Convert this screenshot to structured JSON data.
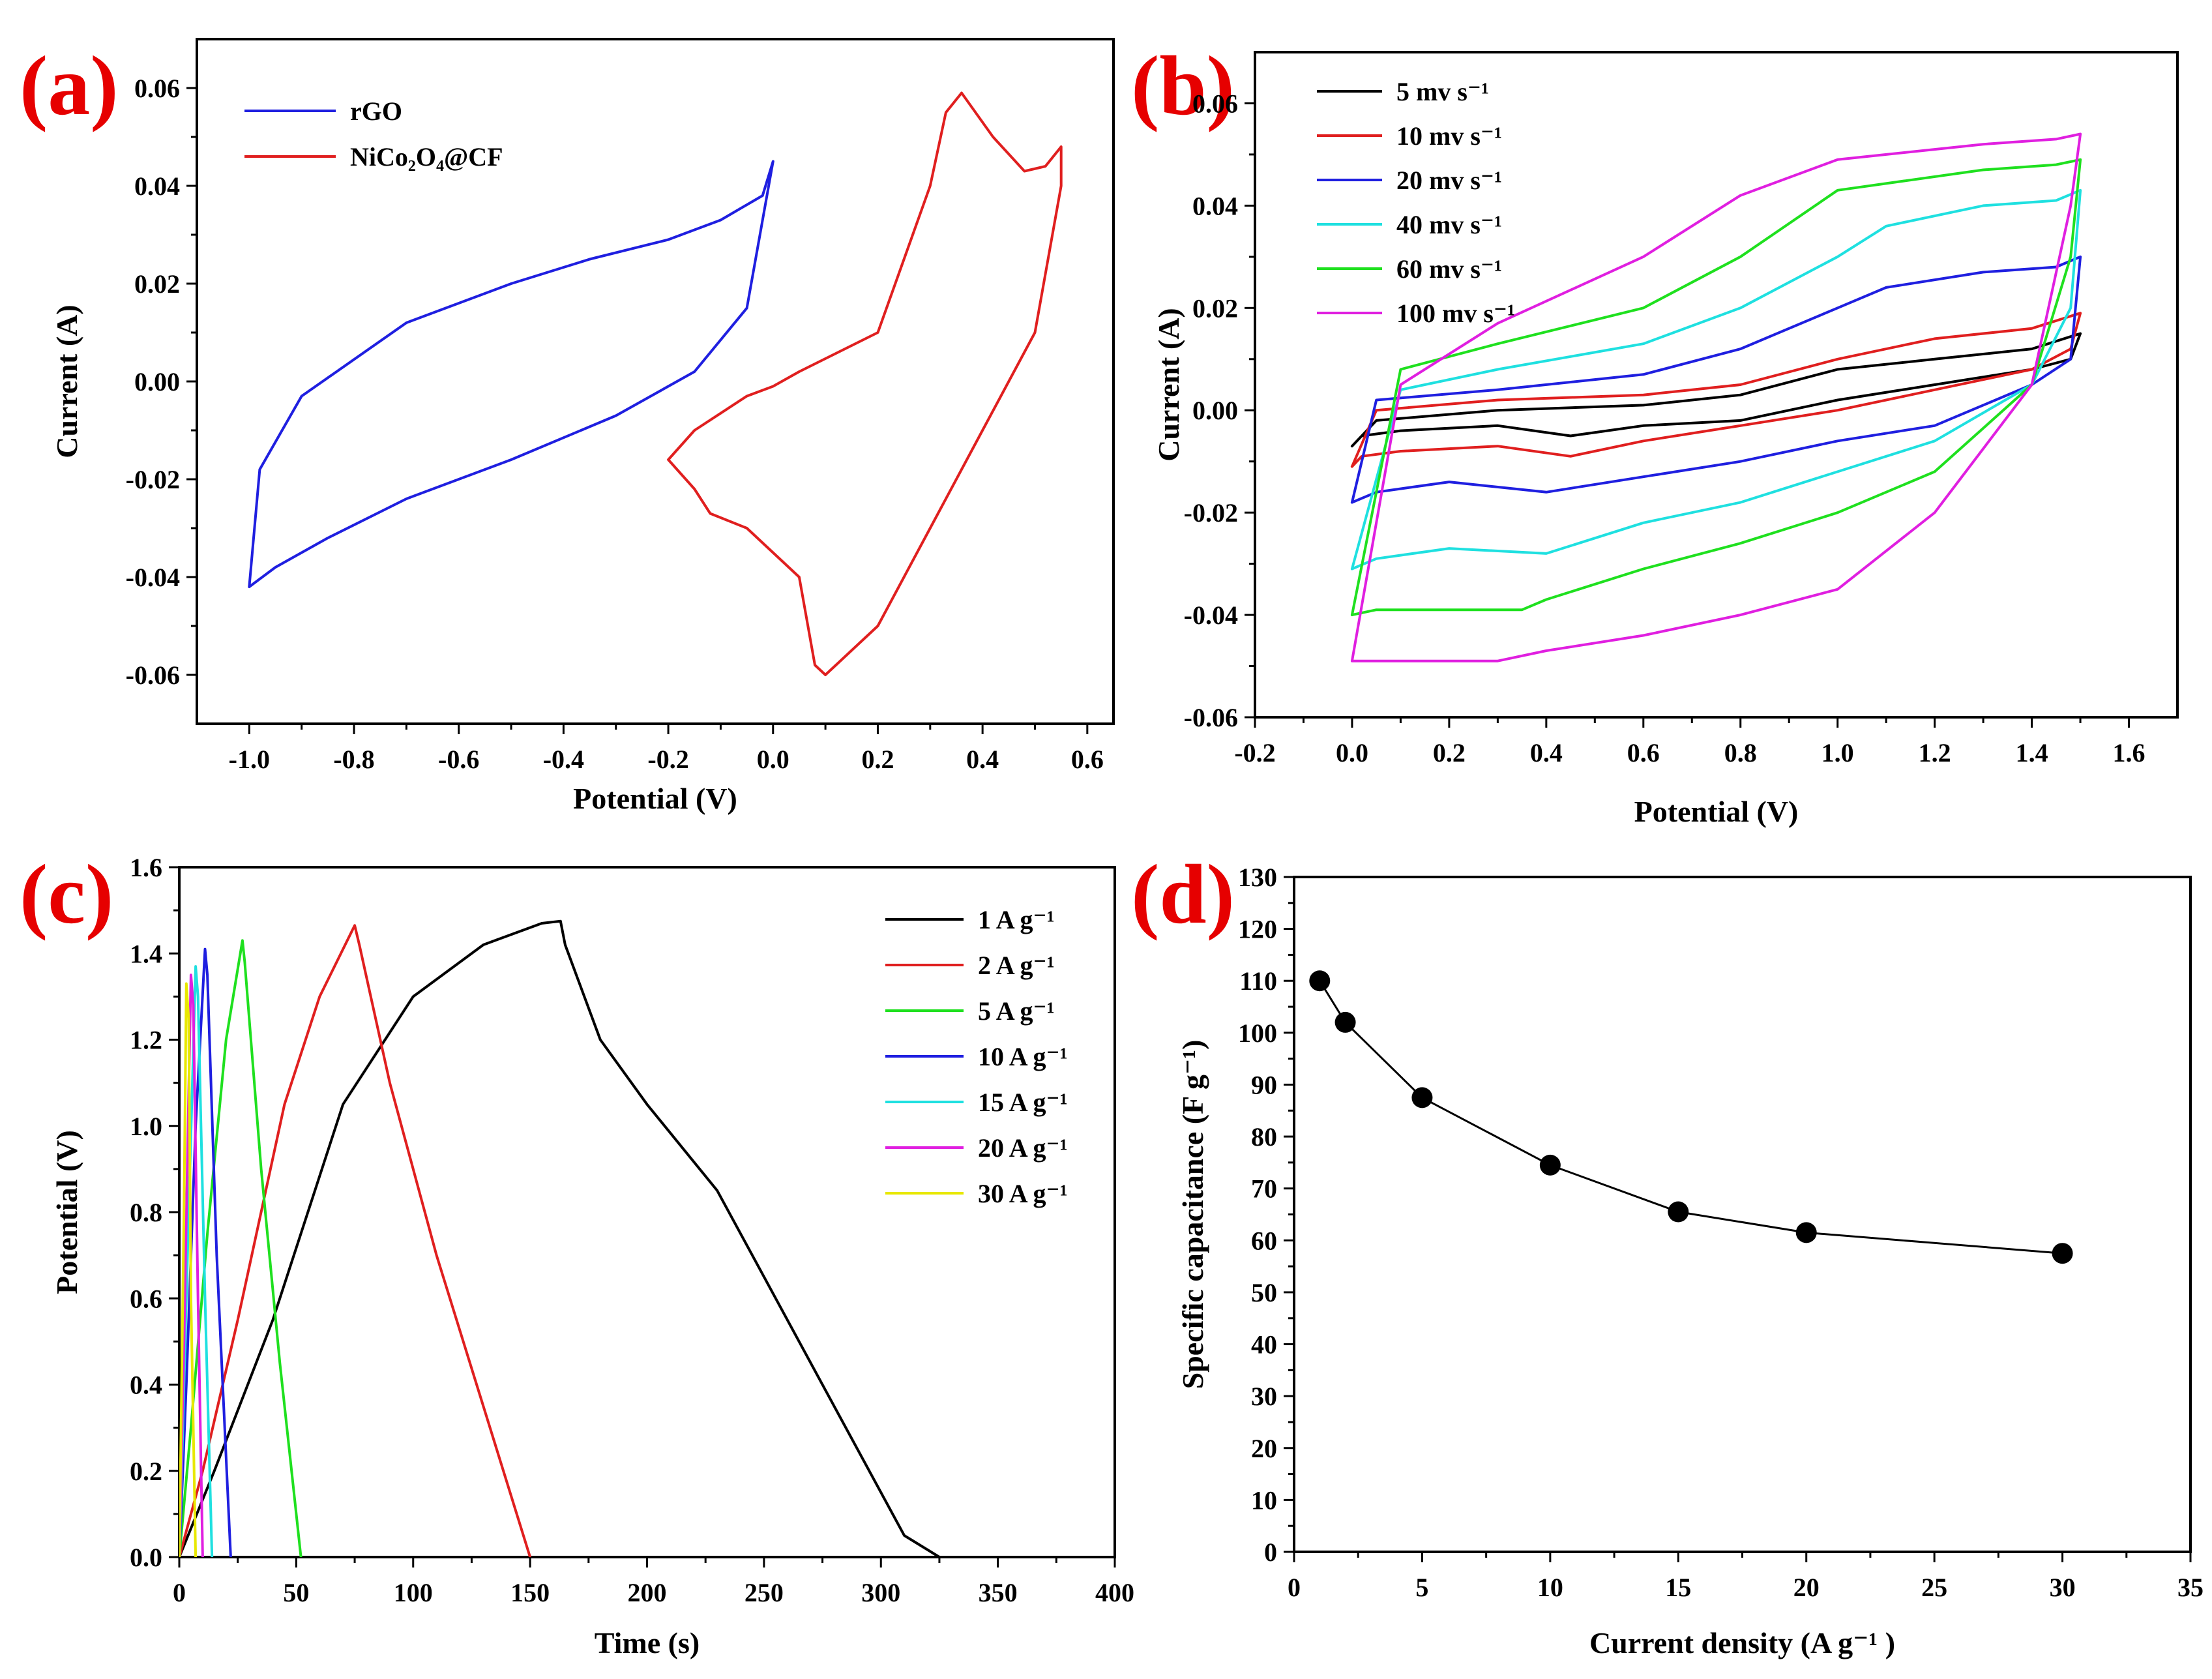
{
  "figure": {
    "panels": [
      {
        "id": "a",
        "label": "(a)"
      },
      {
        "id": "b",
        "label": "(b)"
      },
      {
        "id": "c",
        "label": "(c)"
      },
      {
        "id": "d",
        "label": "(d)"
      }
    ]
  },
  "chart_data": [
    {
      "id": "a",
      "type": "line",
      "panel_label": "(a)",
      "xlabel": "Potential (V)",
      "ylabel": "Current (A)",
      "xlim": [
        -1.1,
        0.65
      ],
      "ylim": [
        -0.07,
        0.07
      ],
      "xticks": [
        -1.0,
        -0.8,
        -0.6,
        -0.4,
        -0.2,
        0.0,
        0.2,
        0.4,
        0.6
      ],
      "xtick_labels": [
        "-1.0",
        "-0.8",
        "-0.6",
        "-0.4",
        "-0.2",
        "0.0",
        "0.2",
        "0.4",
        "0.6"
      ],
      "yticks": [
        -0.06,
        -0.04,
        -0.02,
        0.0,
        0.02,
        0.04,
        0.06
      ],
      "ytick_labels": [
        "-0.06",
        "-0.04",
        "-0.02",
        "0.00",
        "0.02",
        "0.04",
        "0.06"
      ],
      "legend_position": "top-left",
      "series": [
        {
          "name": "rGO",
          "color": "#1f1fe0",
          "x": [
            -1.0,
            -0.95,
            -0.85,
            -0.7,
            -0.5,
            -0.3,
            -0.15,
            -0.05,
            0.0,
            -0.02,
            -0.1,
            -0.2,
            -0.35,
            -0.5,
            -0.7,
            -0.9,
            -0.98,
            -1.0
          ],
          "y": [
            -0.042,
            -0.038,
            -0.032,
            -0.024,
            -0.016,
            -0.007,
            0.002,
            0.015,
            0.045,
            0.038,
            0.033,
            0.029,
            0.025,
            0.02,
            0.012,
            -0.003,
            -0.018,
            -0.042
          ]
        },
        {
          "name": "NiCo₂O₄@CF",
          "color": "#e01f1f",
          "x": [
            -0.2,
            -0.15,
            -0.05,
            0.0,
            0.05,
            0.2,
            0.3,
            0.33,
            0.36,
            0.42,
            0.48,
            0.52,
            0.55,
            0.55,
            0.5,
            0.4,
            0.3,
            0.2,
            0.12,
            0.1,
            0.08,
            0.05,
            -0.05,
            -0.12,
            -0.15,
            -0.2
          ],
          "y": [
            -0.016,
            -0.01,
            -0.003,
            -0.001,
            0.002,
            0.01,
            0.04,
            0.055,
            0.059,
            0.05,
            0.043,
            0.044,
            0.048,
            0.04,
            0.01,
            -0.01,
            -0.03,
            -0.05,
            -0.058,
            -0.06,
            -0.058,
            -0.04,
            -0.03,
            -0.027,
            -0.022,
            -0.016
          ]
        }
      ]
    },
    {
      "id": "b",
      "type": "line",
      "panel_label": "(b)",
      "xlabel": "Potential (V)",
      "ylabel": "Current (A)",
      "xlim": [
        -0.2,
        1.7
      ],
      "ylim": [
        -0.06,
        0.07
      ],
      "xticks": [
        -0.2,
        0.0,
        0.2,
        0.4,
        0.6,
        0.8,
        1.0,
        1.2,
        1.4,
        1.6
      ],
      "xtick_labels": [
        "-0.2",
        "0.0",
        "0.2",
        "0.4",
        "0.6",
        "0.8",
        "1.0",
        "1.2",
        "1.4",
        "1.6"
      ],
      "yticks": [
        -0.06,
        -0.04,
        -0.02,
        0.0,
        0.02,
        0.04,
        0.06
      ],
      "ytick_labels": [
        "-0.06",
        "-0.04",
        "-0.02",
        "0.00",
        "0.02",
        "0.04",
        "0.06"
      ],
      "legend_position": "top-left",
      "series": [
        {
          "name": "5 mv s⁻¹",
          "color": "#000000",
          "x": [
            0.0,
            0.05,
            0.3,
            0.6,
            0.8,
            1.0,
            1.2,
            1.4,
            1.5,
            1.48,
            1.4,
            1.2,
            1.0,
            0.8,
            0.6,
            0.45,
            0.3,
            0.1,
            0.02,
            0.0
          ],
          "y": [
            -0.007,
            -0.002,
            0.0,
            0.001,
            0.003,
            0.008,
            0.01,
            0.012,
            0.015,
            0.01,
            0.008,
            0.005,
            0.002,
            -0.002,
            -0.003,
            -0.005,
            -0.003,
            -0.004,
            -0.005,
            -0.007
          ]
        },
        {
          "name": "10 mv s⁻¹",
          "color": "#e01f1f",
          "x": [
            0.0,
            0.05,
            0.3,
            0.6,
            0.8,
            1.0,
            1.2,
            1.4,
            1.5,
            1.48,
            1.4,
            1.2,
            1.0,
            0.8,
            0.6,
            0.45,
            0.3,
            0.1,
            0.02,
            0.0
          ],
          "y": [
            -0.011,
            0.0,
            0.002,
            0.003,
            0.005,
            0.01,
            0.014,
            0.016,
            0.019,
            0.012,
            0.008,
            0.004,
            0.0,
            -0.003,
            -0.006,
            -0.009,
            -0.007,
            -0.008,
            -0.009,
            -0.011
          ]
        },
        {
          "name": "20 mv s⁻¹",
          "color": "#1f1fe0",
          "x": [
            0.0,
            0.05,
            0.3,
            0.6,
            0.8,
            1.0,
            1.1,
            1.3,
            1.45,
            1.5,
            1.48,
            1.4,
            1.2,
            1.0,
            0.8,
            0.6,
            0.4,
            0.2,
            0.05,
            0.0
          ],
          "y": [
            -0.018,
            0.002,
            0.004,
            0.007,
            0.012,
            0.02,
            0.024,
            0.027,
            0.028,
            0.03,
            0.01,
            0.005,
            -0.003,
            -0.006,
            -0.01,
            -0.013,
            -0.016,
            -0.014,
            -0.016,
            -0.018
          ]
        },
        {
          "name": "40 mv s⁻¹",
          "color": "#1fe0e0",
          "x": [
            0.0,
            0.1,
            0.3,
            0.6,
            0.8,
            1.0,
            1.1,
            1.3,
            1.45,
            1.5,
            1.48,
            1.4,
            1.2,
            1.0,
            0.8,
            0.6,
            0.4,
            0.2,
            0.05,
            0.0
          ],
          "y": [
            -0.031,
            0.004,
            0.008,
            0.013,
            0.02,
            0.03,
            0.036,
            0.04,
            0.041,
            0.043,
            0.02,
            0.005,
            -0.006,
            -0.012,
            -0.018,
            -0.022,
            -0.028,
            -0.027,
            -0.029,
            -0.031
          ]
        },
        {
          "name": "60 mv s⁻¹",
          "color": "#1fe01f",
          "x": [
            0.0,
            0.1,
            0.3,
            0.6,
            0.8,
            1.0,
            1.3,
            1.45,
            1.5,
            1.48,
            1.4,
            1.2,
            1.0,
            0.8,
            0.6,
            0.4,
            0.35,
            0.2,
            0.05,
            0.0
          ],
          "y": [
            -0.04,
            0.008,
            0.013,
            0.02,
            0.03,
            0.043,
            0.047,
            0.048,
            0.049,
            0.03,
            0.005,
            -0.012,
            -0.02,
            -0.026,
            -0.031,
            -0.037,
            -0.039,
            -0.039,
            -0.039,
            -0.04
          ]
        },
        {
          "name": "100 mv s⁻¹",
          "color": "#e01fe0",
          "x": [
            0.0,
            0.1,
            0.3,
            0.6,
            0.8,
            1.0,
            1.3,
            1.45,
            1.5,
            1.48,
            1.4,
            1.2,
            1.0,
            0.8,
            0.6,
            0.4,
            0.3,
            0.2,
            0.05,
            0.0
          ],
          "y": [
            -0.049,
            0.005,
            0.017,
            0.03,
            0.042,
            0.049,
            0.052,
            0.053,
            0.054,
            0.04,
            0.005,
            -0.02,
            -0.035,
            -0.04,
            -0.044,
            -0.047,
            -0.049,
            -0.049,
            -0.049,
            -0.049
          ]
        }
      ]
    },
    {
      "id": "c",
      "type": "line",
      "panel_label": "(c)",
      "xlabel": "Time (s)",
      "ylabel": "Potential (V)",
      "xlim": [
        0,
        400
      ],
      "ylim": [
        0,
        1.6
      ],
      "xticks": [
        0,
        50,
        100,
        150,
        200,
        250,
        300,
        350,
        400
      ],
      "xtick_labels": [
        "0",
        "50",
        "100",
        "150",
        "200",
        "250",
        "300",
        "350",
        "400"
      ],
      "yticks": [
        0.0,
        0.2,
        0.4,
        0.6,
        0.8,
        1.0,
        1.2,
        1.4,
        1.6
      ],
      "ytick_labels": [
        "0.0",
        "0.2",
        "0.4",
        "0.6",
        "0.8",
        "1.0",
        "1.2",
        "1.4",
        "1.6"
      ],
      "legend_position": "top-right",
      "series": [
        {
          "name": "1 A g⁻¹",
          "color": "#000000",
          "x": [
            0,
            15,
            40,
            70,
            100,
            130,
            155,
            163,
            165,
            180,
            200,
            230,
            250,
            280,
            310,
            325
          ],
          "y": [
            0,
            0.2,
            0.55,
            1.05,
            1.3,
            1.42,
            1.47,
            1.475,
            1.42,
            1.2,
            1.05,
            0.85,
            0.65,
            0.35,
            0.05,
            0.0
          ]
        },
        {
          "name": "2 A g⁻¹",
          "color": "#e01f1f",
          "x": [
            0,
            10,
            25,
            45,
            60,
            75,
            77,
            90,
            110,
            130,
            150
          ],
          "y": [
            0,
            0.2,
            0.55,
            1.05,
            1.3,
            1.465,
            1.42,
            1.1,
            0.7,
            0.35,
            0.0
          ]
        },
        {
          "name": "5 A g⁻¹",
          "color": "#1fe01f",
          "x": [
            0,
            5,
            12,
            20,
            27,
            28,
            35,
            43,
            52
          ],
          "y": [
            0,
            0.3,
            0.75,
            1.2,
            1.43,
            1.38,
            0.9,
            0.45,
            0.0
          ]
        },
        {
          "name": "10 A g⁻¹",
          "color": "#1f1fe0",
          "x": [
            0,
            3,
            7,
            11,
            12,
            16,
            22
          ],
          "y": [
            0,
            0.4,
            1.0,
            1.41,
            1.35,
            0.7,
            0.0
          ]
        },
        {
          "name": "15 A g⁻¹",
          "color": "#1fe0e0",
          "x": [
            0,
            3,
            7,
            8,
            11,
            14
          ],
          "y": [
            0,
            0.6,
            1.37,
            1.3,
            0.6,
            0.0
          ]
        },
        {
          "name": "20 A g⁻¹",
          "color": "#e01fe0",
          "x": [
            0,
            2,
            5,
            6,
            8,
            10
          ],
          "y": [
            0,
            0.5,
            1.35,
            1.28,
            0.6,
            0.0
          ]
        },
        {
          "name": "30 A g⁻¹",
          "color": "#e8e800",
          "x": [
            0,
            2,
            3,
            4,
            5,
            7
          ],
          "y": [
            0,
            0.8,
            1.33,
            1.25,
            0.6,
            0.0
          ]
        }
      ]
    },
    {
      "id": "d",
      "type": "scatter",
      "panel_label": "(d)",
      "xlabel": "Current density (A g⁻¹ )",
      "ylabel": "Specific capacitance (F g⁻¹)",
      "xlim": [
        0,
        35
      ],
      "ylim": [
        0,
        130
      ],
      "xticks": [
        0,
        5,
        10,
        15,
        20,
        25,
        30,
        35
      ],
      "xtick_labels": [
        "0",
        "5",
        "10",
        "15",
        "20",
        "25",
        "30",
        "35"
      ],
      "yticks": [
        0,
        10,
        20,
        30,
        40,
        50,
        60,
        70,
        80,
        90,
        100,
        110,
        120,
        130
      ],
      "ytick_labels": [
        "0",
        "10",
        "20",
        "30",
        "40",
        "50",
        "60",
        "70",
        "80",
        "90",
        "100",
        "110",
        "120",
        "130"
      ],
      "series": [
        {
          "name": "Specific capacitance",
          "color": "#000000",
          "x": [
            1,
            2,
            5,
            10,
            15,
            20,
            30
          ],
          "y": [
            110,
            102,
            87.5,
            74.5,
            65.5,
            61.5,
            57.5
          ]
        }
      ]
    }
  ]
}
